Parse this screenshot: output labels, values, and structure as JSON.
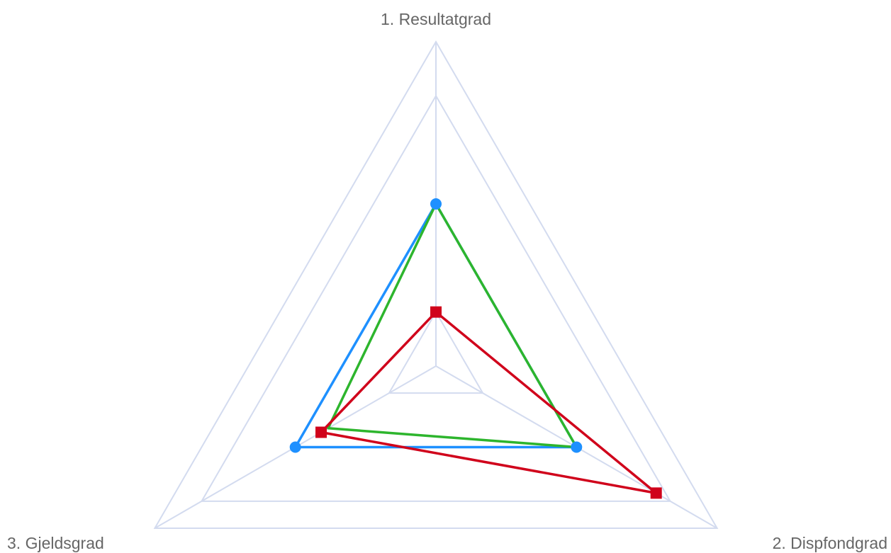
{
  "chart_data": {
    "type": "radar",
    "axes": [
      "1. Resultatgrad",
      "2. Dispfondgrad",
      "3. Gjeldsgrad"
    ],
    "rmax": 6,
    "grid_levels": [
      1,
      3,
      5,
      6
    ],
    "series": [
      {
        "color": "#1e90ff",
        "marker": "circle",
        "values": [
          3.0,
          3.0,
          3.0
        ]
      },
      {
        "color": "#2db52d",
        "marker": "none",
        "values": [
          3.0,
          3.0,
          2.3
        ]
      },
      {
        "color": "#d0021b",
        "marker": "square",
        "values": [
          1.0,
          4.7,
          2.45
        ]
      }
    ]
  }
}
